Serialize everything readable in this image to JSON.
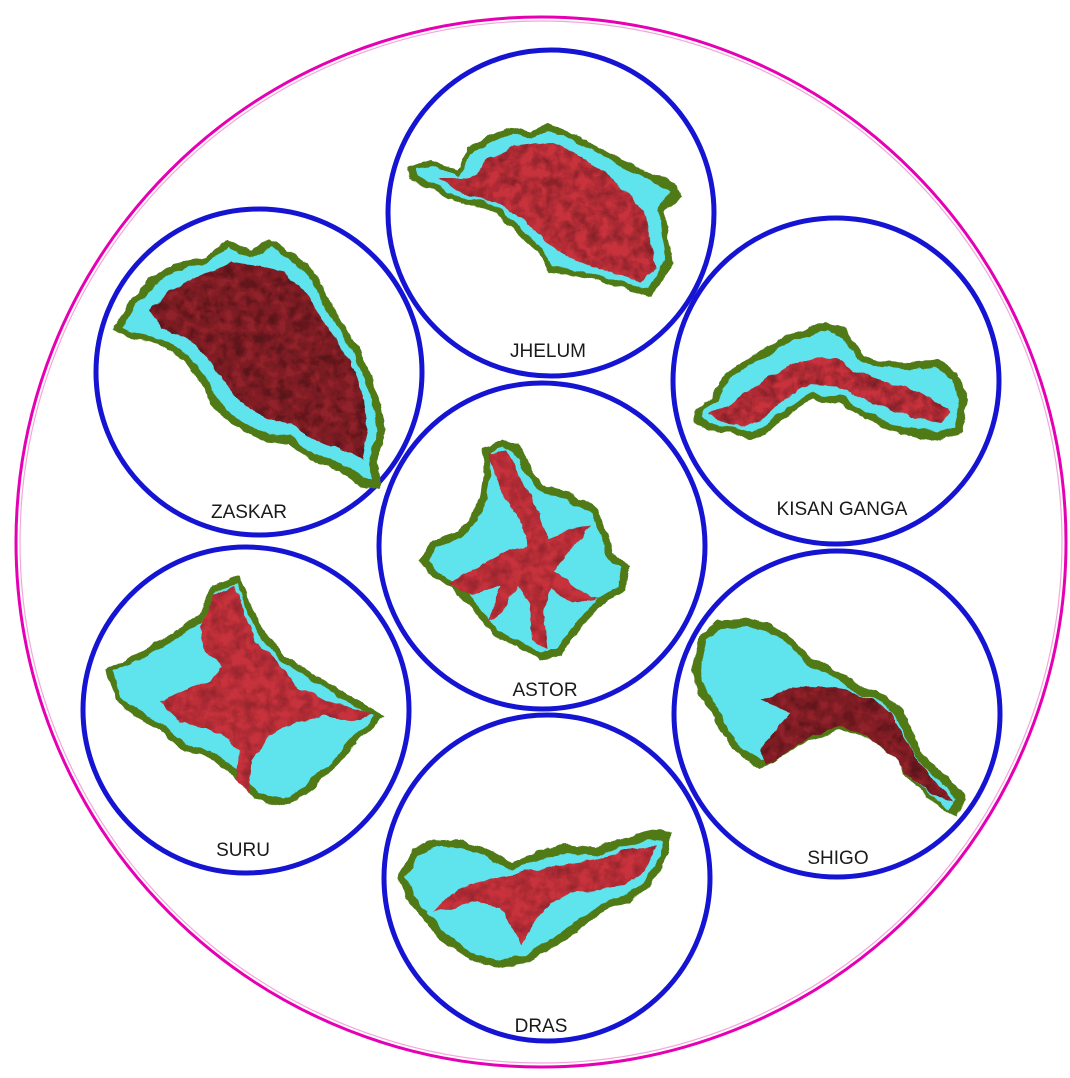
{
  "colors": {
    "outer_ring": "#e600b4",
    "outer_ring_inner": "#f3a6dc",
    "basin_circle": "#1414d2",
    "basin_border": "#4f7a16",
    "terrain_red": "#c8323c",
    "terrain_dark": "#6e1a22",
    "snow_cyan": "#5fe3ec"
  },
  "basins": [
    {
      "id": "jhelum",
      "label": "JHELUM",
      "terrain": "valley-floor"
    },
    {
      "id": "zaskar",
      "label": "ZASKAR",
      "terrain": "rugged-dark"
    },
    {
      "id": "kisan-ganga",
      "label": "KISAN GANGA",
      "terrain": "mixed"
    },
    {
      "id": "astor",
      "label": "ASTOR",
      "terrain": "dendritic"
    },
    {
      "id": "suru",
      "label": "SURU",
      "terrain": "snow-dominant"
    },
    {
      "id": "shigo",
      "label": "SHIGO",
      "terrain": "snow-dominant"
    },
    {
      "id": "dras",
      "label": "DRAS",
      "terrain": "snow-dominant"
    }
  ]
}
